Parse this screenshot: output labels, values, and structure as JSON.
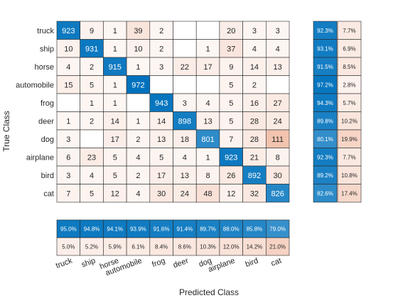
{
  "chart_data": {
    "type": "heatmap",
    "title": "",
    "xlabel": "Predicted Class",
    "ylabel": "True Class",
    "row_labels": [
      "truck",
      "ship",
      "horse",
      "automobile",
      "frog",
      "deer",
      "dog",
      "airplane",
      "bird",
      "cat"
    ],
    "col_labels": [
      "truck",
      "ship",
      "horse",
      "automobile",
      "frog",
      "deer",
      "dog",
      "airplane",
      "bird",
      "cat"
    ],
    "matrix": [
      [
        923,
        9,
        1,
        39,
        2,
        null,
        null,
        20,
        3,
        3
      ],
      [
        10,
        931,
        1,
        10,
        2,
        null,
        1,
        37,
        4,
        4
      ],
      [
        4,
        2,
        915,
        1,
        3,
        22,
        17,
        9,
        14,
        13
      ],
      [
        15,
        5,
        1,
        972,
        null,
        null,
        null,
        5,
        2,
        null
      ],
      [
        null,
        1,
        1,
        null,
        943,
        3,
        4,
        5,
        16,
        27
      ],
      [
        1,
        2,
        14,
        1,
        14,
        898,
        13,
        5,
        28,
        24
      ],
      [
        3,
        null,
        17,
        2,
        13,
        18,
        801,
        7,
        28,
        111
      ],
      [
        6,
        23,
        5,
        4,
        5,
        4,
        1,
        923,
        21,
        8
      ],
      [
        3,
        4,
        5,
        2,
        17,
        13,
        8,
        26,
        892,
        30
      ],
      [
        7,
        5,
        12,
        4,
        30,
        24,
        48,
        12,
        32,
        826
      ]
    ],
    "row_summary": {
      "correct": [
        "92.3%",
        "93.1%",
        "91.5%",
        "97.2%",
        "94.3%",
        "89.8%",
        "80.1%",
        "92.3%",
        "89.2%",
        "82.6%"
      ],
      "incorrect": [
        "7.7%",
        "6.9%",
        "8.5%",
        "2.8%",
        "5.7%",
        "10.2%",
        "19.9%",
        "7.7%",
        "10.8%",
        "17.4%"
      ]
    },
    "column_summary": {
      "correct": [
        "95.0%",
        "94.8%",
        "94.1%",
        "93.9%",
        "91.6%",
        "91.4%",
        "89.7%",
        "88.0%",
        "85.8%",
        "79.0%"
      ],
      "incorrect": [
        "5.0%",
        "5.2%",
        "5.9%",
        "6.1%",
        "8.4%",
        "8.6%",
        "10.3%",
        "12.0%",
        "14.2%",
        "21.0%"
      ]
    },
    "colors": {
      "diagonal": "#0072bd",
      "off_diagonal": "#d95319",
      "grid": "#262626",
      "text_dark": "#262626",
      "text_light": "#ffffff"
    }
  }
}
